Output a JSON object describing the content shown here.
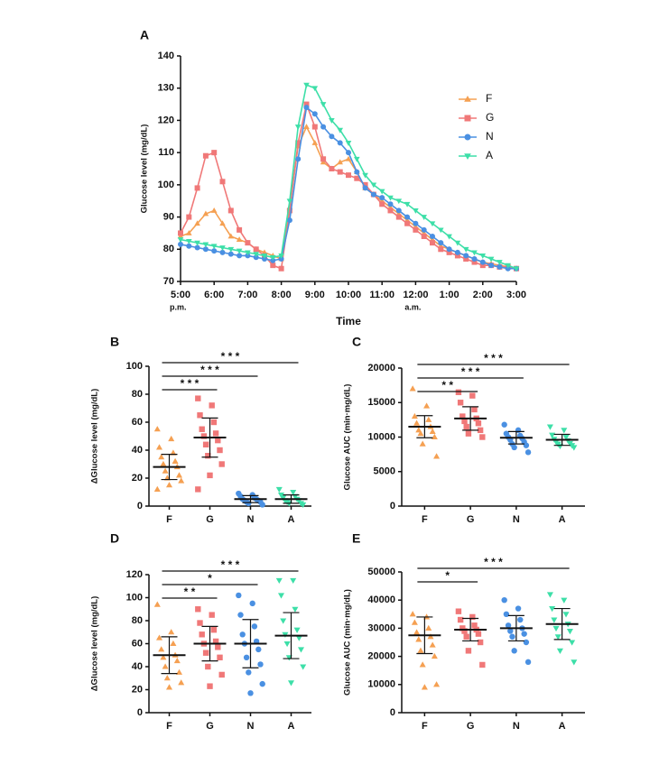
{
  "chart_data": [
    {
      "type": "line",
      "panel": "A",
      "xlabel": "Time",
      "ylabel": "Glucose level (mg/dL)",
      "x": [
        0,
        0.25,
        0.5,
        0.75,
        1,
        1.25,
        1.5,
        1.75,
        2,
        2.25,
        2.5,
        2.75,
        3,
        3.25,
        3.5,
        3.75,
        4,
        4.25,
        4.5,
        4.75,
        5,
        5.25,
        5.5,
        5.75,
        6,
        6.25,
        6.5,
        6.75,
        7,
        7.25,
        7.5,
        7.75,
        8,
        8.25,
        8.5,
        8.75,
        9,
        9.25,
        9.5,
        9.75,
        10
      ],
      "xlim": [
        0,
        10
      ],
      "xticks": [
        {
          "value": 0,
          "label": "5:00"
        },
        {
          "value": 1,
          "label": "6:00"
        },
        {
          "value": 2,
          "label": "7:00"
        },
        {
          "value": 3,
          "label": "8:00"
        },
        {
          "value": 4,
          "label": "9:00"
        },
        {
          "value": 5,
          "label": "10:00"
        },
        {
          "value": 6,
          "label": "11:00"
        },
        {
          "value": 7,
          "label": "12:00"
        },
        {
          "value": 8,
          "label": "1:00"
        },
        {
          "value": 9,
          "label": "2:00"
        },
        {
          "value": 10,
          "label": "3:00"
        }
      ],
      "annotations": [
        {
          "text": "p.m.",
          "x": 0
        },
        {
          "text": "a.m.",
          "x": 7
        }
      ],
      "ylim": [
        70,
        140
      ],
      "yticks": [
        70,
        80,
        90,
        100,
        110,
        120,
        130,
        140
      ],
      "series": [
        {
          "name": "F",
          "color": "#f5a052",
          "marker": "triangle",
          "values": [
            84,
            85,
            88,
            91,
            92,
            88,
            84,
            83,
            82,
            80,
            79,
            78,
            77,
            93,
            112,
            118,
            113,
            107,
            105,
            107,
            108,
            104,
            99,
            97,
            95,
            93,
            91,
            89,
            87,
            85,
            83,
            81,
            80,
            79,
            78,
            77,
            76,
            75.5,
            75,
            74.5,
            74
          ]
        },
        {
          "name": "G",
          "color": "#f07878",
          "marker": "square",
          "values": [
            85,
            90,
            99,
            109,
            110,
            101,
            92,
            86,
            82,
            80,
            78,
            75,
            74,
            92,
            113,
            125,
            118,
            108,
            105,
            104,
            103,
            102,
            100,
            97,
            94,
            92,
            90,
            88,
            86,
            84,
            82,
            80,
            79,
            78,
            77,
            76,
            75,
            75,
            74.5,
            74.5,
            74
          ]
        },
        {
          "name": "N",
          "color": "#4a90e2",
          "marker": "circle",
          "values": [
            81.5,
            81,
            80.5,
            80,
            79.5,
            79,
            78.5,
            78,
            78,
            77.5,
            77,
            76.5,
            77,
            89,
            108,
            124,
            122,
            118,
            115,
            113,
            110,
            104,
            99,
            97,
            96,
            94,
            92,
            90,
            88,
            86,
            84,
            82,
            80,
            79,
            78,
            77,
            76,
            75,
            74.5,
            74,
            74
          ]
        },
        {
          "name": "A",
          "color": "#3ddfa8",
          "marker": "triangle-down",
          "values": [
            83,
            82.5,
            82,
            81.5,
            81,
            80.5,
            80,
            79.5,
            79,
            78.5,
            78,
            77.5,
            78,
            95,
            118,
            131,
            130,
            125,
            120,
            117,
            113,
            108,
            103,
            100,
            98,
            96,
            95,
            94,
            92,
            90,
            88,
            86,
            84,
            82,
            80,
            79,
            78,
            77,
            76,
            75,
            74
          ]
        }
      ]
    },
    {
      "type": "dot",
      "panel": "B",
      "ylabel": "ΔGlucose level (mg/dL)",
      "ylim": [
        0,
        100
      ],
      "yticks": [
        0,
        20,
        40,
        60,
        80,
        100
      ],
      "comparisons": [
        {
          "label": "* * *",
          "groups": [
            "F",
            "A"
          ]
        },
        {
          "label": "* * *",
          "groups": [
            "F",
            "N"
          ]
        },
        {
          "label": "* * *",
          "groups": [
            "F",
            "G"
          ]
        }
      ],
      "series": [
        {
          "name": "F",
          "color": "#f5a052",
          "marker": "triangle",
          "mean": 28,
          "sd": 9,
          "values": [
            55,
            48,
            42,
            38,
            35,
            32,
            30,
            28,
            25,
            22,
            20,
            18,
            15,
            12
          ]
        },
        {
          "name": "G",
          "color": "#f07878",
          "marker": "square",
          "mean": 49,
          "sd": 14,
          "values": [
            77,
            72,
            65,
            60,
            55,
            52,
            50,
            47,
            44,
            40,
            36,
            30,
            22,
            12
          ]
        },
        {
          "name": "N",
          "color": "#4a90e2",
          "marker": "circle",
          "mean": 5,
          "sd": 2.5,
          "values": [
            9,
            8,
            7,
            6,
            5,
            5,
            4,
            4,
            3,
            3,
            2,
            1
          ]
        },
        {
          "name": "A",
          "color": "#3ddfa8",
          "marker": "triangle-down",
          "mean": 5,
          "sd": 3,
          "values": [
            12,
            10,
            8,
            7,
            6,
            5,
            4,
            4,
            3,
            2,
            2,
            1
          ]
        }
      ]
    },
    {
      "type": "dot",
      "panel": "C",
      "ylabel": "Glucose AUC (min·mg/dL)",
      "ylim": [
        0,
        20000
      ],
      "yticks": [
        0,
        5000,
        10000,
        15000,
        20000
      ],
      "comparisons": [
        {
          "label": "* * *",
          "groups": [
            "F",
            "A"
          ]
        },
        {
          "label": "* * *",
          "groups": [
            "F",
            "N"
          ]
        },
        {
          "label": "* *",
          "groups": [
            "F",
            "G"
          ]
        }
      ],
      "series": [
        {
          "name": "F",
          "color": "#f5a052",
          "marker": "triangle",
          "mean": 11500,
          "sd": 1600,
          "values": [
            17000,
            14500,
            13000,
            12500,
            12000,
            11500,
            11000,
            10800,
            10500,
            10000,
            9000,
            7200
          ]
        },
        {
          "name": "G",
          "color": "#f07878",
          "marker": "square",
          "mean": 12700,
          "sd": 1700,
          "values": [
            16500,
            16000,
            15000,
            14000,
            13000,
            12700,
            12300,
            12000,
            11500,
            11000,
            10500,
            10000
          ]
        },
        {
          "name": "N",
          "color": "#4a90e2",
          "marker": "circle",
          "mean": 9900,
          "sd": 900,
          "values": [
            11800,
            11000,
            10500,
            10200,
            10000,
            9800,
            9600,
            9300,
            9000,
            8800,
            8500,
            7800
          ]
        },
        {
          "name": "A",
          "color": "#3ddfa8",
          "marker": "triangle-down",
          "mean": 9600,
          "sd": 800,
          "values": [
            11500,
            11000,
            10300,
            10000,
            9700,
            9500,
            9300,
            9100,
            9000,
            8800,
            8700,
            8500
          ]
        }
      ]
    },
    {
      "type": "dot",
      "panel": "D",
      "ylabel": "ΔGlucose level (mg/dL)",
      "ylim": [
        0,
        120
      ],
      "yticks": [
        0,
        20,
        40,
        60,
        80,
        100,
        120
      ],
      "comparisons": [
        {
          "label": "* * *",
          "groups": [
            "F",
            "A"
          ]
        },
        {
          "label": "*",
          "groups": [
            "F",
            "N"
          ]
        },
        {
          "label": "* *",
          "groups": [
            "F",
            "G"
          ]
        }
      ],
      "series": [
        {
          "name": "F",
          "color": "#f5a052",
          "marker": "triangle",
          "mean": 50,
          "sd": 16,
          "values": [
            94,
            70,
            65,
            60,
            55,
            50,
            48,
            45,
            40,
            35,
            30,
            26,
            22
          ]
        },
        {
          "name": "G",
          "color": "#f07878",
          "marker": "square",
          "mean": 60,
          "sd": 15,
          "values": [
            90,
            85,
            78,
            72,
            68,
            62,
            60,
            57,
            52,
            48,
            40,
            33,
            23
          ]
        },
        {
          "name": "N",
          "color": "#4a90e2",
          "marker": "circle",
          "mean": 60,
          "sd": 21,
          "values": [
            102,
            95,
            85,
            75,
            68,
            62,
            60,
            55,
            48,
            42,
            35,
            25,
            17
          ]
        },
        {
          "name": "A",
          "color": "#3ddfa8",
          "marker": "triangle-down",
          "mean": 67,
          "sd": 20,
          "values": [
            115,
            115,
            102,
            90,
            80,
            72,
            68,
            65,
            60,
            55,
            48,
            40,
            26
          ]
        }
      ]
    },
    {
      "type": "dot",
      "panel": "E",
      "ylabel": "Glucose AUC (min·mg/dL)",
      "ylim": [
        0,
        50000
      ],
      "yticks": [
        0,
        10000,
        20000,
        30000,
        40000,
        50000
      ],
      "comparisons": [
        {
          "label": "* * *",
          "groups": [
            "F",
            "A"
          ]
        },
        {
          "label": "*",
          "groups": [
            "F",
            "G"
          ]
        }
      ],
      "series": [
        {
          "name": "F",
          "color": "#f5a052",
          "marker": "triangle",
          "mean": 27500,
          "sd": 6500,
          "values": [
            35000,
            34000,
            32000,
            30000,
            28500,
            27000,
            26000,
            24000,
            22000,
            20000,
            17000,
            10000,
            9000
          ]
        },
        {
          "name": "G",
          "color": "#f07878",
          "marker": "square",
          "mean": 29500,
          "sd": 4000,
          "values": [
            36000,
            34000,
            33000,
            31000,
            30000,
            29500,
            29000,
            28000,
            27000,
            25000,
            22000,
            17000
          ]
        },
        {
          "name": "N",
          "color": "#4a90e2",
          "marker": "circle",
          "mean": 30000,
          "sd": 4500,
          "values": [
            40000,
            37000,
            35000,
            33000,
            31000,
            30000,
            29000,
            28000,
            27000,
            25000,
            22000,
            18000
          ]
        },
        {
          "name": "A",
          "color": "#3ddfa8",
          "marker": "triangle-down",
          "mean": 31500,
          "sd": 5500,
          "values": [
            42000,
            40000,
            37000,
            35000,
            33000,
            31500,
            30000,
            29000,
            27000,
            25000,
            22000,
            18000
          ]
        }
      ]
    }
  ]
}
